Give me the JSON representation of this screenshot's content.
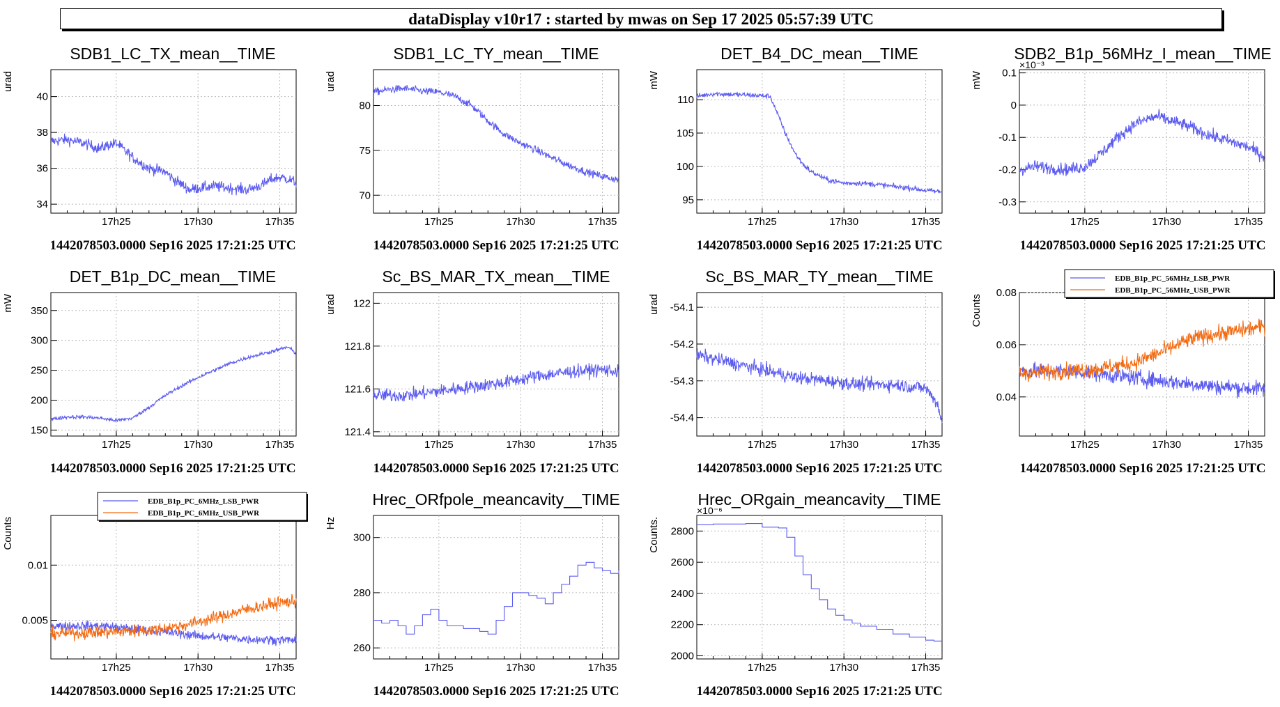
{
  "app": {
    "banner": "dataDisplay v10r17 : started by mwas on Sep 17 2025 05:57:39 UTC"
  },
  "colors": {
    "blue": "#5b5bf0",
    "orange": "#f46a10",
    "grid": "#bbbbbb"
  },
  "chart_data": [
    {
      "type": "line",
      "title": "SDB1_LC_TX_mean__TIME",
      "ylabel": "urad",
      "ylim": [
        33.5,
        41.5
      ],
      "yticks": [
        34,
        36,
        38,
        40
      ],
      "ytick_labels": [
        "34",
        "36",
        "38",
        "40"
      ],
      "xlim": [
        0,
        15
      ],
      "xticks": [
        4,
        9,
        14
      ],
      "xtick_labels": [
        "17h25",
        "17h30",
        "17h35"
      ],
      "footer": "1442078503.0000 Sep16 2025 17:21:25 UTC",
      "series": [
        {
          "color": "blue",
          "noise": 0.22,
          "x": [
            0,
            1,
            2,
            3,
            3.5,
            4,
            4.5,
            5,
            6,
            7,
            7.5,
            8,
            8.5,
            9,
            10,
            11,
            12,
            13,
            13.5,
            14,
            14.5,
            15
          ],
          "y": [
            37.5,
            37.6,
            37.4,
            37.1,
            37.3,
            37.4,
            37.0,
            36.6,
            36.0,
            35.8,
            35.4,
            35.1,
            34.8,
            34.9,
            35.0,
            34.9,
            34.8,
            35.1,
            35.4,
            35.5,
            35.4,
            35.2
          ]
        }
      ]
    },
    {
      "type": "line",
      "title": "SDB1_LC_TY_mean__TIME",
      "ylabel": "urad",
      "ylim": [
        68,
        84
      ],
      "yticks": [
        70,
        75,
        80
      ],
      "ytick_labels": [
        "70",
        "75",
        "80"
      ],
      "xlim": [
        0,
        15
      ],
      "xticks": [
        4,
        9,
        14
      ],
      "xtick_labels": [
        "17h25",
        "17h30",
        "17h35"
      ],
      "footer": "1442078503.0000 Sep16 2025 17:21:25 UTC",
      "series": [
        {
          "color": "blue",
          "noise": 0.3,
          "x": [
            0,
            1,
            2,
            3,
            4,
            5,
            6,
            7,
            8,
            9,
            10,
            11,
            12,
            13,
            14,
            15
          ],
          "y": [
            81.5,
            81.8,
            81.9,
            81.6,
            81.5,
            81.0,
            80.0,
            78.3,
            76.8,
            75.8,
            75.0,
            74.1,
            73.3,
            72.6,
            72.1,
            71.7
          ]
        }
      ]
    },
    {
      "type": "line",
      "title": "DET_B4_DC_mean__TIME",
      "ylabel": "mW",
      "ylim": [
        93,
        114.5
      ],
      "yticks": [
        95,
        100,
        105,
        110
      ],
      "ytick_labels": [
        "95",
        "100",
        "105",
        "110"
      ],
      "xlim": [
        0,
        15
      ],
      "xticks": [
        4,
        9,
        14
      ],
      "xtick_labels": [
        "17h25",
        "17h30",
        "17h35"
      ],
      "footer": "1442078503.0000 Sep16 2025 17:21:25 UTC",
      "series": [
        {
          "color": "blue",
          "noise": 0.28,
          "x": [
            0,
            1,
            2,
            3,
            4,
            4.5,
            5,
            5.5,
            6,
            6.5,
            7,
            8,
            9,
            10,
            11,
            12,
            13,
            14,
            15
          ],
          "y": [
            110.5,
            110.9,
            110.8,
            110.7,
            110.6,
            110.5,
            107.5,
            104.5,
            102.0,
            100.3,
            99.2,
            98.0,
            97.5,
            97.5,
            97.3,
            97.0,
            96.8,
            96.4,
            96.2
          ]
        }
      ]
    },
    {
      "type": "line",
      "title": "SDB2_B1p_56MHz_I_mean__TIME",
      "ylabel": "mW",
      "exponent_label": "×10⁻³",
      "ylim": [
        -0.335,
        0.11
      ],
      "yticks": [
        -0.3,
        -0.2,
        -0.1,
        0,
        0.1
      ],
      "ytick_labels": [
        "-0.3",
        "-0.2",
        "-0.1",
        "0",
        "0.1"
      ],
      "xlim": [
        0,
        15
      ],
      "xticks": [
        4,
        9,
        14
      ],
      "xtick_labels": [
        "17h25",
        "17h30",
        "17h35"
      ],
      "footer": "1442078503.0000 Sep16 2025 17:21:25 UTC",
      "series": [
        {
          "color": "blue",
          "noise": 0.014,
          "x": [
            0,
            1,
            2,
            3,
            4,
            5,
            6,
            7,
            8,
            8.5,
            9,
            10,
            11,
            12,
            13,
            14,
            15
          ],
          "y": [
            -0.2,
            -0.19,
            -0.195,
            -0.2,
            -0.19,
            -0.15,
            -0.1,
            -0.06,
            -0.04,
            -0.035,
            -0.045,
            -0.06,
            -0.08,
            -0.1,
            -0.115,
            -0.13,
            -0.16
          ]
        }
      ]
    },
    {
      "type": "line",
      "title": "DET_B1p_DC_mean__TIME",
      "ylabel": "mW",
      "ylim": [
        140,
        380
      ],
      "yticks": [
        150,
        200,
        250,
        300,
        350
      ],
      "ytick_labels": [
        "150",
        "200",
        "250",
        "300",
        "350"
      ],
      "xlim": [
        0,
        15
      ],
      "xticks": [
        4,
        9,
        14
      ],
      "xtick_labels": [
        "17h25",
        "17h30",
        "17h35"
      ],
      "footer": "1442078503.0000 Sep16 2025 17:21:25 UTC",
      "series": [
        {
          "color": "blue",
          "noise": 2.2,
          "x": [
            0,
            1,
            2,
            3,
            4,
            5,
            6,
            7,
            8,
            9,
            10,
            11,
            12,
            13,
            14,
            14.5,
            15
          ],
          "y": [
            168,
            172,
            172,
            170,
            166,
            170,
            188,
            208,
            224,
            238,
            250,
            262,
            271,
            278,
            285,
            289,
            278
          ]
        }
      ]
    },
    {
      "type": "line",
      "title": "Sc_BS_MAR_TX_mean__TIME",
      "ylabel": "urad",
      "ylim": [
        121.38,
        122.05
      ],
      "yticks": [
        121.4,
        121.6,
        121.8,
        122
      ],
      "ytick_labels": [
        "121.4",
        "121.6",
        "121.8",
        "122"
      ],
      "xlim": [
        0,
        15
      ],
      "xticks": [
        4,
        9,
        14
      ],
      "xtick_labels": [
        "17h25",
        "17h30",
        "17h35"
      ],
      "footer": "1442078503.0000 Sep16 2025 17:21:25 UTC",
      "series": [
        {
          "color": "blue",
          "noise": 0.022,
          "x": [
            0,
            2,
            4,
            6,
            8,
            10,
            12,
            14,
            15
          ],
          "y": [
            121.57,
            121.57,
            121.59,
            121.61,
            121.63,
            121.66,
            121.68,
            121.69,
            121.68
          ]
        }
      ]
    },
    {
      "type": "line",
      "title": "Sc_BS_MAR_TY_mean__TIME",
      "ylabel": "urad",
      "ylim": [
        -54.45,
        -54.06
      ],
      "yticks": [
        -54.4,
        -54.3,
        -54.2,
        -54.1
      ],
      "ytick_labels": [
        "-54.4",
        "-54.3",
        "-54.2",
        "-54.1"
      ],
      "xlim": [
        0,
        15
      ],
      "xticks": [
        4,
        9,
        14
      ],
      "xtick_labels": [
        "17h25",
        "17h30",
        "17h35"
      ],
      "footer": "1442078503.0000 Sep16 2025 17:21:25 UTC",
      "series": [
        {
          "color": "blue",
          "noise": 0.013,
          "x": [
            0,
            2,
            4,
            6,
            8,
            10,
            12,
            14,
            14.7,
            15
          ],
          "y": [
            -54.23,
            -54.25,
            -54.27,
            -54.29,
            -54.3,
            -54.31,
            -54.31,
            -54.32,
            -54.36,
            -54.41
          ]
        }
      ]
    },
    {
      "type": "line",
      "title": "",
      "ylabel": "Counts",
      "ylim": [
        0.025,
        0.08
      ],
      "yticks": [
        0.04,
        0.06,
        0.08
      ],
      "ytick_labels": [
        "0.04",
        "0.06",
        "0.08"
      ],
      "xlim": [
        0,
        15
      ],
      "xticks": [
        4,
        9,
        14
      ],
      "xtick_labels": [
        "17h25",
        "17h30",
        "17h35"
      ],
      "footer": "1442078503.0000 Sep16 2025 17:21:25 UTC",
      "legend": "top-right",
      "series": [
        {
          "name": "EDB_B1p_PC_56MHz_LSB_PWR",
          "color": "blue",
          "noise": 0.0022,
          "x": [
            0,
            3,
            6,
            9,
            12,
            15
          ],
          "y": [
            0.05,
            0.05,
            0.048,
            0.046,
            0.044,
            0.043
          ]
        },
        {
          "name": "EDB_B1p_PC_56MHz_USB_PWR",
          "color": "orange",
          "noise": 0.0022,
          "x": [
            0,
            3,
            5,
            7,
            9,
            10,
            11,
            12,
            13,
            14,
            15
          ],
          "y": [
            0.049,
            0.05,
            0.051,
            0.053,
            0.058,
            0.061,
            0.063,
            0.064,
            0.065,
            0.066,
            0.067
          ]
        }
      ]
    },
    {
      "type": "line",
      "title": "",
      "ylabel": "Counts",
      "ylim": [
        0.0015,
        0.0145
      ],
      "yticks": [
        0.005,
        0.01
      ],
      "ytick_labels": [
        "0.005",
        "0.01"
      ],
      "xlim": [
        0,
        15
      ],
      "xticks": [
        4,
        9,
        14
      ],
      "xtick_labels": [
        "17h25",
        "17h30",
        "17h35"
      ],
      "footer": "1442078503.0000 Sep16 2025 17:21:25 UTC",
      "legend": "top-right",
      "series": [
        {
          "name": "EDB_B1p_PC_6MHz_LSB_PWR",
          "color": "blue",
          "noise": 0.0003,
          "x": [
            0,
            3,
            6,
            9,
            12,
            15
          ],
          "y": [
            0.0045,
            0.0045,
            0.0041,
            0.0036,
            0.0033,
            0.0032
          ]
        },
        {
          "name": "EDB_B1p_PC_6MHz_USB_PWR",
          "color": "orange",
          "noise": 0.0004,
          "x": [
            0,
            3,
            6,
            8,
            10,
            12,
            13,
            14,
            15
          ],
          "y": [
            0.0038,
            0.0039,
            0.0041,
            0.0045,
            0.0052,
            0.006,
            0.0063,
            0.0066,
            0.0067
          ]
        }
      ]
    },
    {
      "type": "line",
      "title": "Hrec_ORfpole_meancavity__TIME",
      "ylabel": "Hz",
      "ylim": [
        256,
        308
      ],
      "yticks": [
        260,
        280,
        300
      ],
      "ytick_labels": [
        "260",
        "280",
        "300"
      ],
      "xlim": [
        0,
        15
      ],
      "xticks": [
        4,
        9,
        14
      ],
      "xtick_labels": [
        "17h25",
        "17h30",
        "17h35"
      ],
      "footer": "1442078503.0000 Sep16 2025 17:21:25 UTC",
      "step": true,
      "series": [
        {
          "color": "blue",
          "noise": 0,
          "x": [
            0,
            0.5,
            1,
            1.5,
            2,
            2.5,
            3,
            3.5,
            4,
            4.5,
            5,
            5.5,
            6,
            6.5,
            7,
            7.5,
            8,
            8.5,
            9,
            9.5,
            10,
            10.5,
            11,
            11.5,
            12,
            12.5,
            13,
            13.5,
            14,
            14.5,
            15
          ],
          "y": [
            270,
            269,
            270,
            268,
            265,
            268,
            272,
            274,
            270,
            268,
            268,
            267,
            267,
            266,
            265,
            270,
            275,
            280,
            280,
            279,
            278,
            276,
            280,
            283,
            286,
            290,
            291,
            289,
            288,
            287,
            288
          ]
        }
      ]
    },
    {
      "type": "line",
      "title": "Hrec_ORgain_meancavity__TIME",
      "ylabel": "Counts.",
      "exponent_label": "×10⁻⁶",
      "ylim": [
        1980,
        2900
      ],
      "yticks": [
        2000,
        2200,
        2400,
        2600,
        2800
      ],
      "ytick_labels": [
        "2000",
        "2200",
        "2400",
        "2600",
        "2800"
      ],
      "xlim": [
        0,
        15
      ],
      "xticks": [
        4,
        9,
        14
      ],
      "xtick_labels": [
        "17h25",
        "17h30",
        "17h35"
      ],
      "footer": "1442078503.0000 Sep16 2025 17:21:25 UTC",
      "step": true,
      "series": [
        {
          "color": "blue",
          "noise": 0,
          "x": [
            0,
            1,
            2,
            3,
            4,
            5,
            5.5,
            6,
            6.5,
            7,
            7.5,
            8,
            8.5,
            9,
            9.5,
            10,
            11,
            12,
            13,
            14,
            14.5,
            15
          ],
          "y": [
            2840,
            2845,
            2845,
            2848,
            2825,
            2820,
            2760,
            2640,
            2520,
            2430,
            2360,
            2300,
            2260,
            2230,
            2210,
            2190,
            2170,
            2140,
            2120,
            2100,
            2095,
            2095
          ]
        }
      ]
    }
  ]
}
